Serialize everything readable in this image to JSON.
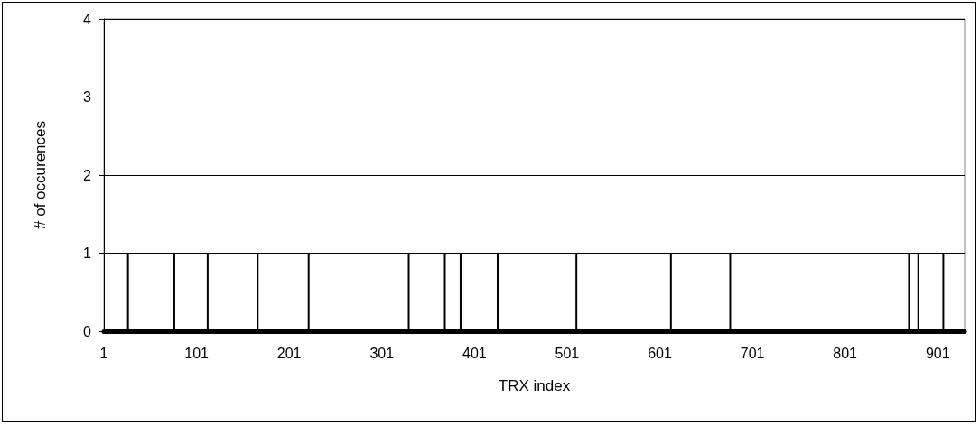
{
  "chart_data": {
    "type": "bar",
    "xlabel": "TRX index",
    "ylabel": "# of occurences",
    "x": [
      27,
      77,
      113,
      167,
      222,
      330,
      369,
      386,
      426,
      511,
      613,
      677,
      870,
      880,
      907
    ],
    "values": [
      1,
      1,
      1,
      1,
      1,
      1,
      1,
      1,
      1,
      1,
      1,
      1,
      1,
      1,
      1
    ],
    "color": "#000000",
    "xlim": [
      1,
      930
    ],
    "xticks": [
      1,
      101,
      201,
      301,
      401,
      501,
      601,
      701,
      801,
      901
    ],
    "ylim": [
      0,
      4
    ],
    "yticks": [
      0,
      1,
      2,
      3,
      4
    ],
    "grid": "y"
  }
}
